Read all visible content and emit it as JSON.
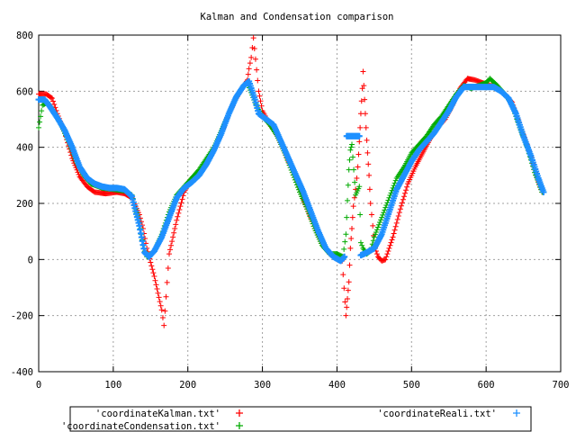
{
  "chart_data": {
    "type": "scatter",
    "title": "Kalman and Condensation comparison",
    "xlabel": "",
    "ylabel": "",
    "xlim": [
      0,
      700
    ],
    "ylim": [
      -400,
      800
    ],
    "x_ticks": [
      "0",
      "100",
      "200",
      "300",
      "400",
      "500",
      "600",
      "700"
    ],
    "y_ticks": [
      "-400",
      "-200",
      "0",
      "200",
      "400",
      "600",
      "800"
    ],
    "grid": true,
    "legend_position": "bottom",
    "marker": "+",
    "series": [
      {
        "name": "'coordinateKalman.txt'",
        "color": "#ff0000",
        "points": [
          [
            0,
            590
          ],
          [
            10,
            590
          ],
          [
            18,
            575
          ],
          [
            25,
            520
          ],
          [
            35,
            450
          ],
          [
            45,
            360
          ],
          [
            55,
            295
          ],
          [
            65,
            260
          ],
          [
            75,
            240
          ],
          [
            90,
            235
          ],
          [
            105,
            240
          ],
          [
            115,
            235
          ],
          [
            125,
            220
          ],
          [
            135,
            160
          ],
          [
            140,
            110
          ],
          [
            145,
            40
          ],
          [
            150,
            -10
          ],
          [
            155,
            -60
          ],
          [
            160,
            -120
          ],
          [
            165,
            -180
          ],
          [
            168,
            -235
          ],
          [
            175,
            20
          ],
          [
            185,
            140
          ],
          [
            195,
            240
          ],
          [
            205,
            290
          ],
          [
            215,
            310
          ],
          [
            225,
            340
          ],
          [
            235,
            390
          ],
          [
            245,
            450
          ],
          [
            255,
            520
          ],
          [
            265,
            575
          ],
          [
            275,
            620
          ],
          [
            280,
            640
          ],
          [
            282,
            680
          ],
          [
            285,
            720
          ],
          [
            288,
            790
          ],
          [
            295,
            600
          ],
          [
            300,
            530
          ],
          [
            310,
            480
          ],
          [
            320,
            440
          ],
          [
            330,
            380
          ],
          [
            340,
            320
          ],
          [
            350,
            250
          ],
          [
            360,
            180
          ],
          [
            370,
            120
          ],
          [
            380,
            60
          ],
          [
            390,
            20
          ],
          [
            400,
            0
          ],
          [
            407,
            -5
          ],
          [
            412,
            -200
          ],
          [
            414,
            -140
          ],
          [
            416,
            -80
          ],
          [
            418,
            40
          ],
          [
            420,
            110
          ],
          [
            422,
            190
          ],
          [
            425,
            250
          ],
          [
            428,
            330
          ],
          [
            430,
            420
          ],
          [
            432,
            520
          ],
          [
            434,
            610
          ],
          [
            435,
            670
          ],
          [
            437,
            570
          ],
          [
            439,
            470
          ],
          [
            441,
            380
          ],
          [
            443,
            300
          ],
          [
            445,
            200
          ],
          [
            448,
            120
          ],
          [
            450,
            50
          ],
          [
            455,
            10
          ],
          [
            460,
            -5
          ],
          [
            465,
            0
          ],
          [
            475,
            80
          ],
          [
            485,
            180
          ],
          [
            495,
            270
          ],
          [
            505,
            330
          ],
          [
            515,
            380
          ],
          [
            525,
            430
          ],
          [
            535,
            470
          ],
          [
            545,
            500
          ],
          [
            555,
            550
          ],
          [
            565,
            610
          ],
          [
            575,
            645
          ],
          [
            585,
            640
          ],
          [
            595,
            630
          ],
          [
            605,
            620
          ],
          [
            615,
            615
          ],
          [
            625,
            590
          ],
          [
            635,
            560
          ],
          [
            645,
            480
          ],
          [
            655,
            410
          ],
          [
            665,
            320
          ],
          [
            675,
            240
          ]
        ]
      },
      {
        "name": "'coordinateCondensation.txt'",
        "color": "#00aa00",
        "points": [
          [
            0,
            470
          ],
          [
            5,
            550
          ],
          [
            12,
            560
          ],
          [
            20,
            530
          ],
          [
            30,
            480
          ],
          [
            40,
            420
          ],
          [
            50,
            350
          ],
          [
            60,
            300
          ],
          [
            70,
            270
          ],
          [
            85,
            255
          ],
          [
            100,
            250
          ],
          [
            115,
            245
          ],
          [
            125,
            230
          ],
          [
            135,
            130
          ],
          [
            140,
            50
          ],
          [
            145,
            10
          ],
          [
            155,
            30
          ],
          [
            165,
            90
          ],
          [
            175,
            170
          ],
          [
            185,
            230
          ],
          [
            195,
            260
          ],
          [
            205,
            290
          ],
          [
            215,
            320
          ],
          [
            225,
            360
          ],
          [
            235,
            400
          ],
          [
            245,
            460
          ],
          [
            255,
            520
          ],
          [
            265,
            580
          ],
          [
            275,
            620
          ],
          [
            280,
            630
          ],
          [
            290,
            560
          ],
          [
            300,
            510
          ],
          [
            310,
            480
          ],
          [
            320,
            440
          ],
          [
            330,
            380
          ],
          [
            340,
            310
          ],
          [
            350,
            240
          ],
          [
            360,
            180
          ],
          [
            370,
            110
          ],
          [
            380,
            50
          ],
          [
            390,
            20
          ],
          [
            400,
            20
          ],
          [
            408,
            10
          ],
          [
            412,
            90
          ],
          [
            414,
            210
          ],
          [
            416,
            320
          ],
          [
            418,
            390
          ],
          [
            420,
            410
          ],
          [
            425,
            230
          ],
          [
            430,
            260
          ],
          [
            432,
            60
          ],
          [
            435,
            40
          ],
          [
            440,
            20
          ],
          [
            445,
            30
          ],
          [
            450,
            80
          ],
          [
            460,
            150
          ],
          [
            470,
            220
          ],
          [
            480,
            290
          ],
          [
            490,
            330
          ],
          [
            500,
            380
          ],
          [
            510,
            410
          ],
          [
            520,
            440
          ],
          [
            530,
            480
          ],
          [
            540,
            510
          ],
          [
            550,
            550
          ],
          [
            560,
            590
          ],
          [
            570,
            620
          ],
          [
            580,
            610
          ],
          [
            590,
            620
          ],
          [
            600,
            630
          ],
          [
            605,
            645
          ],
          [
            615,
            620
          ],
          [
            625,
            590
          ],
          [
            635,
            550
          ],
          [
            645,
            470
          ],
          [
            655,
            400
          ],
          [
            665,
            310
          ],
          [
            675,
            240
          ]
        ]
      },
      {
        "name": "'coordinateReali.txt'",
        "color": "#1e90ff",
        "points": [
          [
            0,
            570
          ],
          [
            8,
            570
          ],
          [
            15,
            545
          ],
          [
            25,
            505
          ],
          [
            35,
            460
          ],
          [
            45,
            400
          ],
          [
            55,
            330
          ],
          [
            65,
            290
          ],
          [
            75,
            270
          ],
          [
            85,
            260
          ],
          [
            95,
            255
          ],
          [
            105,
            255
          ],
          [
            115,
            250
          ],
          [
            125,
            225
          ],
          [
            135,
            120
          ],
          [
            142,
            25
          ],
          [
            148,
            10
          ],
          [
            155,
            30
          ],
          [
            165,
            80
          ],
          [
            175,
            150
          ],
          [
            185,
            220
          ],
          [
            195,
            255
          ],
          [
            205,
            275
          ],
          [
            215,
            300
          ],
          [
            225,
            340
          ],
          [
            235,
            390
          ],
          [
            245,
            450
          ],
          [
            255,
            520
          ],
          [
            265,
            580
          ],
          [
            275,
            620
          ],
          [
            282,
            635
          ],
          [
            290,
            570
          ],
          [
            295,
            520
          ],
          [
            305,
            500
          ],
          [
            315,
            480
          ],
          [
            325,
            420
          ],
          [
            335,
            360
          ],
          [
            345,
            300
          ],
          [
            355,
            240
          ],
          [
            365,
            170
          ],
          [
            375,
            100
          ],
          [
            385,
            40
          ],
          [
            395,
            10
          ],
          [
            405,
            -5
          ],
          [
            410,
            10
          ],
          [
            413,
            440
          ],
          [
            418,
            440
          ],
          [
            425,
            440
          ],
          [
            430,
            440
          ],
          [
            432,
            15
          ],
          [
            440,
            25
          ],
          [
            450,
            40
          ],
          [
            460,
            90
          ],
          [
            470,
            170
          ],
          [
            480,
            250
          ],
          [
            490,
            300
          ],
          [
            500,
            350
          ],
          [
            510,
            390
          ],
          [
            520,
            420
          ],
          [
            530,
            450
          ],
          [
            540,
            490
          ],
          [
            550,
            530
          ],
          [
            560,
            580
          ],
          [
            570,
            615
          ],
          [
            580,
            615
          ],
          [
            590,
            615
          ],
          [
            600,
            615
          ],
          [
            610,
            615
          ],
          [
            620,
            600
          ],
          [
            630,
            575
          ],
          [
            640,
            520
          ],
          [
            650,
            440
          ],
          [
            660,
            370
          ],
          [
            670,
            290
          ],
          [
            677,
            240
          ]
        ]
      }
    ]
  }
}
